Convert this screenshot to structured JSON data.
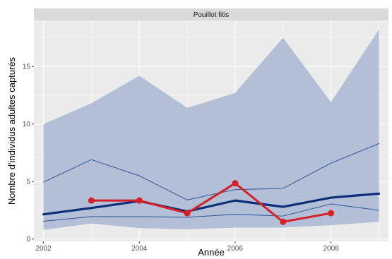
{
  "chart_data": {
    "type": "line",
    "facet_title": "Pouillot fitis",
    "xlabel": "Année",
    "ylabel": "Nombre d'individus adultes capturés",
    "xlim": [
      2001.8,
      2009.2
    ],
    "ylim": [
      -0.2,
      19.0
    ],
    "x_ticks": [
      2002,
      2004,
      2006,
      2008
    ],
    "y_ticks": [
      0,
      5,
      10,
      15
    ],
    "grid": true,
    "colors": {
      "panel": "#ebebeb",
      "grid_major": "#ffffff",
      "strip": "#d9d9d9",
      "ribbon": "#b3bfd6",
      "band_lines": "#3a5f9e",
      "mean_line": "#0d2f7a",
      "observed": "#d61f26"
    },
    "series": [
      {
        "role": "ribbon",
        "x": [
          2002,
          2003,
          2004,
          2005,
          2006,
          2007,
          2008,
          2009
        ],
        "lower": [
          0.8,
          1.35,
          0.95,
          0.85,
          1.0,
          1.0,
          1.2,
          1.5
        ],
        "upper": [
          10.0,
          11.8,
          14.2,
          11.4,
          12.7,
          17.5,
          11.9,
          18.2
        ]
      },
      {
        "role": "upper-quantile",
        "x": [
          2002,
          2003,
          2004,
          2005,
          2006,
          2007,
          2008,
          2009
        ],
        "values": [
          4.95,
          6.9,
          5.5,
          3.4,
          4.3,
          4.4,
          6.6,
          8.3
        ]
      },
      {
        "role": "lower-quantile",
        "x": [
          2002,
          2003,
          2004,
          2005,
          2006,
          2007,
          2008,
          2009
        ],
        "values": [
          1.55,
          1.95,
          1.95,
          1.9,
          2.15,
          2.0,
          3.05,
          2.5
        ]
      },
      {
        "role": "mean",
        "x": [
          2002,
          2003,
          2004,
          2005,
          2006,
          2007,
          2008,
          2009
        ],
        "values": [
          2.15,
          2.7,
          3.3,
          2.4,
          3.35,
          2.8,
          3.6,
          3.95
        ]
      },
      {
        "role": "observed",
        "x": [
          2003,
          2004,
          2005,
          2006,
          2007,
          2008
        ],
        "values": [
          3.35,
          3.35,
          2.25,
          4.85,
          1.5,
          2.25
        ]
      }
    ]
  }
}
